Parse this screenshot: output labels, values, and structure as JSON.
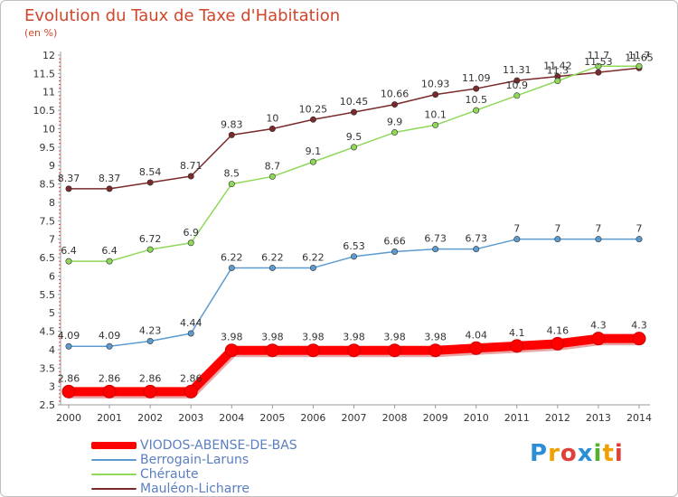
{
  "header": {
    "title": "Evolution du Taux de Taxe d'Habitation",
    "subtitle": "(en %)"
  },
  "logo": {
    "text": "Proxiti",
    "letter_colors": [
      "#2c8fd6",
      "#f0a000",
      "#e0403a",
      "#2c8fd6",
      "#55b030",
      "#f0a000",
      "#e0403a"
    ]
  },
  "chart_data": {
    "type": "line",
    "title": "Evolution du Taux de Taxe d'Habitation",
    "subtitle": "(en %)",
    "xlabel": "",
    "ylabel": "",
    "ylim": [
      2.5,
      12
    ],
    "yticks": [
      "2.5",
      "3",
      "3.5",
      "4",
      "4.5",
      "5",
      "5.5",
      "6",
      "6.5",
      "7",
      "7.5",
      "8",
      "8.5",
      "9",
      "9.5",
      "10",
      "10.5",
      "11",
      "11.5",
      "12"
    ],
    "grid": false,
    "legend_position": "bottom-left",
    "x": [
      "2000",
      "2001",
      "2002",
      "2003",
      "2004",
      "2005",
      "2006",
      "2007",
      "2008",
      "2009",
      "2010",
      "2011",
      "2012",
      "2013",
      "2014"
    ],
    "series": [
      {
        "name": "VIODOS-ABENSE-DE-BAS",
        "color": "#ff0000",
        "values": [
          2.86,
          2.86,
          2.86,
          2.86,
          3.98,
          3.98,
          3.98,
          3.98,
          3.98,
          3.98,
          4.04,
          4.1,
          4.16,
          4.3,
          4.3
        ],
        "labels": [
          "2.86",
          "2.86",
          "2.86",
          "2.86",
          "3.98",
          "3.98",
          "3.98",
          "3.98",
          "3.98",
          "3.98",
          "4.04",
          "4.1",
          "4.16",
          "4.3",
          "4.3"
        ]
      },
      {
        "name": "Berrogain-Laruns",
        "color": "#5b9bd0",
        "values": [
          4.09,
          4.09,
          4.23,
          4.44,
          6.22,
          6.22,
          6.22,
          6.53,
          6.66,
          6.73,
          6.73,
          7,
          7,
          7,
          7
        ],
        "labels": [
          "4.09",
          "4.09",
          "4.23",
          "4.44",
          "6.22",
          "6.22",
          "6.22",
          "6.53",
          "6.66",
          "6.73",
          "6.73",
          "7",
          "7",
          "7",
          "7"
        ]
      },
      {
        "name": "Chéraute",
        "color": "#8fd85a",
        "values": [
          6.4,
          6.4,
          6.72,
          6.9,
          8.5,
          8.7,
          9.1,
          9.5,
          9.9,
          10.1,
          10.5,
          10.9,
          11.3,
          11.7,
          11.7
        ],
        "labels": [
          "6.4",
          "6.4",
          "6.72",
          "6.9",
          "8.5",
          "8.7",
          "9.1",
          "9.5",
          "9.9",
          "10.1",
          "10.5",
          "10.9",
          "11.3",
          "11.7",
          "11.7"
        ]
      },
      {
        "name": "Mauléon-Licharre",
        "color": "#7a2a2a",
        "values": [
          8.37,
          8.37,
          8.54,
          8.71,
          9.83,
          10,
          10.25,
          10.45,
          10.66,
          10.93,
          11.09,
          11.31,
          11.42,
          11.53,
          11.65
        ],
        "labels": [
          "8.37",
          "8.37",
          "8.54",
          "8.71",
          "9.83",
          "10",
          "10.25",
          "10.45",
          "10.66",
          "10.93",
          "11.09",
          "11.31",
          "11.42",
          "11.53",
          "11.65"
        ]
      }
    ]
  }
}
